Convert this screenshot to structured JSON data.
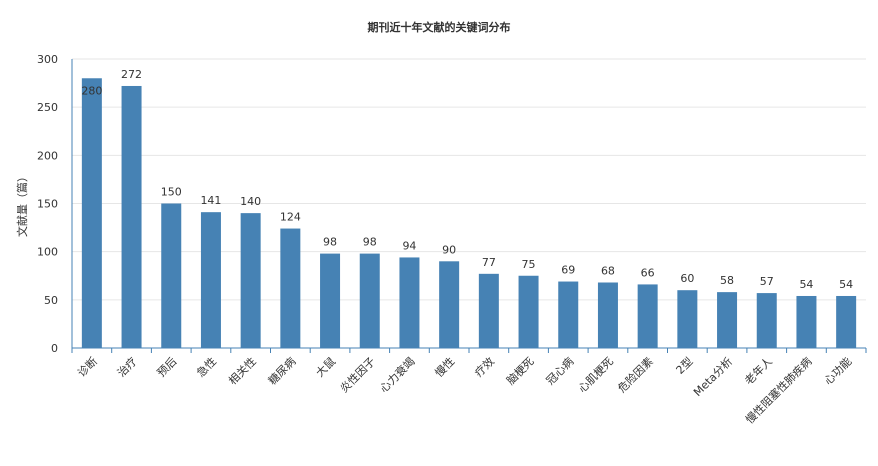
{
  "chart_data": {
    "type": "bar",
    "title": "期刊近十年文献的关键词分布",
    "xlabel": "",
    "ylabel": "文献量（篇）",
    "ylim": [
      0,
      300
    ],
    "yticks": [
      0,
      50,
      100,
      150,
      200,
      250,
      300
    ],
    "grid": true,
    "bar_color": "#4682B4",
    "categories": [
      "诊断",
      "治疗",
      "预后",
      "急性",
      "相关性",
      "糖尿病",
      "大鼠",
      "炎性因子",
      "心力衰竭",
      "慢性",
      "疗效",
      "脑梗死",
      "冠心病",
      "心肌梗死",
      "危险因素",
      "2型",
      "Meta分析",
      "老年人",
      "慢性阻塞性肺疾病",
      "心功能"
    ],
    "values": [
      280,
      272,
      150,
      141,
      140,
      124,
      98,
      98,
      94,
      90,
      77,
      75,
      69,
      68,
      66,
      60,
      58,
      57,
      54,
      54
    ]
  }
}
